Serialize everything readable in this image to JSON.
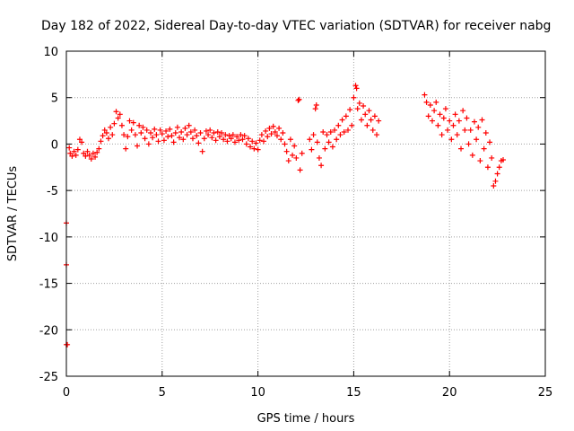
{
  "chart_data": {
    "type": "scatter",
    "title": "Day 182 of 2022, Sidereal Day-to-day VTEC variation (SDTVAR) for receiver nabg",
    "xlabel": "GPS time / hours",
    "ylabel": "SDTVAR / TECUs",
    "xlim": [
      0,
      25
    ],
    "ylim": [
      -25,
      10
    ],
    "xticks": [
      0,
      5,
      10,
      15,
      20,
      25
    ],
    "yticks": [
      -25,
      -20,
      -15,
      -10,
      -5,
      0,
      5,
      10
    ],
    "grid": true,
    "marker": "+",
    "colors": {
      "series": "#ff0000",
      "grid": "#a0a0a0",
      "axes": "#000000"
    },
    "series": [
      {
        "name": "SDTVAR",
        "points": [
          [
            0.0,
            -8.5
          ],
          [
            0.0,
            -13.0
          ],
          [
            0.0,
            -21.6
          ],
          [
            0.05,
            -21.6
          ],
          [
            0.15,
            -0.4
          ],
          [
            0.2,
            -1.0
          ],
          [
            0.3,
            -1.3
          ],
          [
            0.4,
            -0.8
          ],
          [
            0.5,
            -1.2
          ],
          [
            0.6,
            -0.6
          ],
          [
            0.7,
            0.5
          ],
          [
            0.8,
            0.2
          ],
          [
            0.9,
            -1.0
          ],
          [
            1.0,
            -1.3
          ],
          [
            1.1,
            -0.8
          ],
          [
            1.2,
            -1.2
          ],
          [
            1.3,
            -1.6
          ],
          [
            1.4,
            -1.0
          ],
          [
            1.5,
            -1.4
          ],
          [
            1.6,
            -0.9
          ],
          [
            1.7,
            -0.5
          ],
          [
            1.8,
            0.3
          ],
          [
            1.9,
            0.9
          ],
          [
            2.0,
            1.5
          ],
          [
            2.1,
            1.2
          ],
          [
            2.2,
            0.6
          ],
          [
            2.3,
            1.8
          ],
          [
            2.4,
            1.0
          ],
          [
            2.5,
            2.2
          ],
          [
            2.6,
            3.5
          ],
          [
            2.7,
            2.8
          ],
          [
            2.8,
            3.2
          ],
          [
            2.9,
            2.0
          ],
          [
            3.0,
            1.0
          ],
          [
            3.1,
            -0.5
          ],
          [
            3.2,
            0.8
          ],
          [
            3.3,
            2.5
          ],
          [
            3.4,
            1.5
          ],
          [
            3.5,
            2.3
          ],
          [
            3.6,
            1.0
          ],
          [
            3.7,
            -0.2
          ],
          [
            3.8,
            2.0
          ],
          [
            3.9,
            1.2
          ],
          [
            4.0,
            1.8
          ],
          [
            4.1,
            0.6
          ],
          [
            4.2,
            1.5
          ],
          [
            4.3,
            0.0
          ],
          [
            4.4,
            1.2
          ],
          [
            4.5,
            0.7
          ],
          [
            4.6,
            1.6
          ],
          [
            4.7,
            1.0
          ],
          [
            4.8,
            0.3
          ],
          [
            4.9,
            1.5
          ],
          [
            5.0,
            1.1
          ],
          [
            5.1,
            0.4
          ],
          [
            5.2,
            1.4
          ],
          [
            5.3,
            0.8
          ],
          [
            5.4,
            1.6
          ],
          [
            5.5,
            0.9
          ],
          [
            5.6,
            0.2
          ],
          [
            5.7,
            1.2
          ],
          [
            5.8,
            1.8
          ],
          [
            5.9,
            0.7
          ],
          [
            6.0,
            1.3
          ],
          [
            6.1,
            0.5
          ],
          [
            6.2,
            1.7
          ],
          [
            6.3,
            1.0
          ],
          [
            6.4,
            2.0
          ],
          [
            6.5,
            1.3
          ],
          [
            6.6,
            0.6
          ],
          [
            6.7,
            1.5
          ],
          [
            6.8,
            0.9
          ],
          [
            6.9,
            0.1
          ],
          [
            7.0,
            1.2
          ],
          [
            7.1,
            -0.8
          ],
          [
            7.2,
            0.6
          ],
          [
            7.3,
            1.4
          ],
          [
            7.4,
            1.0
          ],
          [
            7.5,
            1.5
          ],
          [
            7.6,
            0.7
          ],
          [
            7.7,
            1.2
          ],
          [
            7.8,
            0.4
          ],
          [
            7.9,
            1.3
          ],
          [
            8.0,
            0.8
          ],
          [
            8.1,
            1.2
          ],
          [
            8.2,
            0.5
          ],
          [
            8.3,
            1.0
          ],
          [
            8.4,
            0.3
          ],
          [
            8.5,
            0.9
          ],
          [
            8.6,
            0.6
          ],
          [
            8.7,
            1.0
          ],
          [
            8.8,
            0.2
          ],
          [
            8.9,
            0.8
          ],
          [
            9.0,
            0.4
          ],
          [
            9.1,
            1.0
          ],
          [
            9.2,
            0.5
          ],
          [
            9.3,
            0.9
          ],
          [
            9.4,
            0.0
          ],
          [
            9.5,
            0.6
          ],
          [
            9.6,
            -0.3
          ],
          [
            9.7,
            0.3
          ],
          [
            9.8,
            -0.5
          ],
          [
            9.9,
            0.1
          ],
          [
            10.0,
            -0.6
          ],
          [
            10.1,
            0.4
          ],
          [
            10.2,
            1.0
          ],
          [
            10.3,
            0.3
          ],
          [
            10.4,
            1.4
          ],
          [
            10.5,
            0.8
          ],
          [
            10.6,
            1.7
          ],
          [
            10.7,
            1.1
          ],
          [
            10.8,
            1.9
          ],
          [
            10.9,
            1.3
          ],
          [
            11.0,
            0.9
          ],
          [
            11.1,
            1.7
          ],
          [
            11.2,
            0.5
          ],
          [
            11.3,
            1.2
          ],
          [
            11.4,
            0.0
          ],
          [
            11.5,
            -0.8
          ],
          [
            11.6,
            -1.8
          ],
          [
            11.7,
            0.5
          ],
          [
            11.8,
            -1.2
          ],
          [
            11.9,
            -0.2
          ],
          [
            12.0,
            -1.5
          ],
          [
            12.1,
            4.7
          ],
          [
            12.15,
            4.8
          ],
          [
            12.2,
            -2.8
          ],
          [
            12.3,
            -1.0
          ],
          [
            12.7,
            0.5
          ],
          [
            12.8,
            -0.6
          ],
          [
            12.9,
            1.0
          ],
          [
            13.0,
            3.8
          ],
          [
            13.05,
            4.2
          ],
          [
            13.1,
            0.2
          ],
          [
            13.2,
            -1.5
          ],
          [
            13.3,
            -2.3
          ],
          [
            13.4,
            1.3
          ],
          [
            13.5,
            -0.5
          ],
          [
            13.6,
            1.0
          ],
          [
            13.7,
            0.2
          ],
          [
            13.8,
            1.3
          ],
          [
            13.9,
            -0.3
          ],
          [
            14.0,
            1.5
          ],
          [
            14.1,
            0.5
          ],
          [
            14.2,
            2.0
          ],
          [
            14.3,
            1.0
          ],
          [
            14.4,
            2.6
          ],
          [
            14.5,
            1.3
          ],
          [
            14.6,
            3.0
          ],
          [
            14.7,
            1.5
          ],
          [
            14.8,
            3.7
          ],
          [
            14.9,
            2.0
          ],
          [
            15.0,
            5.0
          ],
          [
            15.1,
            6.3
          ],
          [
            15.15,
            6.0
          ],
          [
            15.2,
            3.8
          ],
          [
            15.3,
            4.4
          ],
          [
            15.4,
            2.6
          ],
          [
            15.5,
            4.1
          ],
          [
            15.6,
            3.2
          ],
          [
            15.7,
            2.0
          ],
          [
            15.8,
            3.6
          ],
          [
            15.9,
            2.6
          ],
          [
            16.0,
            1.5
          ],
          [
            16.1,
            3.0
          ],
          [
            16.2,
            1.0
          ],
          [
            16.3,
            2.5
          ],
          [
            18.7,
            5.3
          ],
          [
            18.8,
            4.5
          ],
          [
            18.9,
            3.0
          ],
          [
            19.0,
            4.2
          ],
          [
            19.1,
            2.5
          ],
          [
            19.2,
            3.6
          ],
          [
            19.3,
            4.5
          ],
          [
            19.4,
            2.0
          ],
          [
            19.5,
            3.2
          ],
          [
            19.6,
            1.0
          ],
          [
            19.7,
            2.8
          ],
          [
            19.8,
            3.8
          ],
          [
            19.9,
            1.5
          ],
          [
            20.0,
            2.5
          ],
          [
            20.1,
            0.5
          ],
          [
            20.2,
            2.0
          ],
          [
            20.3,
            3.2
          ],
          [
            20.4,
            1.0
          ],
          [
            20.5,
            2.5
          ],
          [
            20.6,
            -0.5
          ],
          [
            20.7,
            3.6
          ],
          [
            20.8,
            1.5
          ],
          [
            20.9,
            2.8
          ],
          [
            21.0,
            0.0
          ],
          [
            21.1,
            1.5
          ],
          [
            21.2,
            -1.2
          ],
          [
            21.3,
            2.4
          ],
          [
            21.4,
            0.5
          ],
          [
            21.5,
            1.8
          ],
          [
            21.6,
            -1.8
          ],
          [
            21.7,
            2.6
          ],
          [
            21.8,
            -0.5
          ],
          [
            21.9,
            1.2
          ],
          [
            22.0,
            -2.5
          ],
          [
            22.1,
            0.2
          ],
          [
            22.2,
            -1.5
          ],
          [
            22.3,
            -4.5
          ],
          [
            22.4,
            -4.0
          ],
          [
            22.5,
            -3.2
          ],
          [
            22.6,
            -2.5
          ],
          [
            22.7,
            -1.8
          ],
          [
            22.8,
            -1.7
          ]
        ]
      }
    ]
  }
}
